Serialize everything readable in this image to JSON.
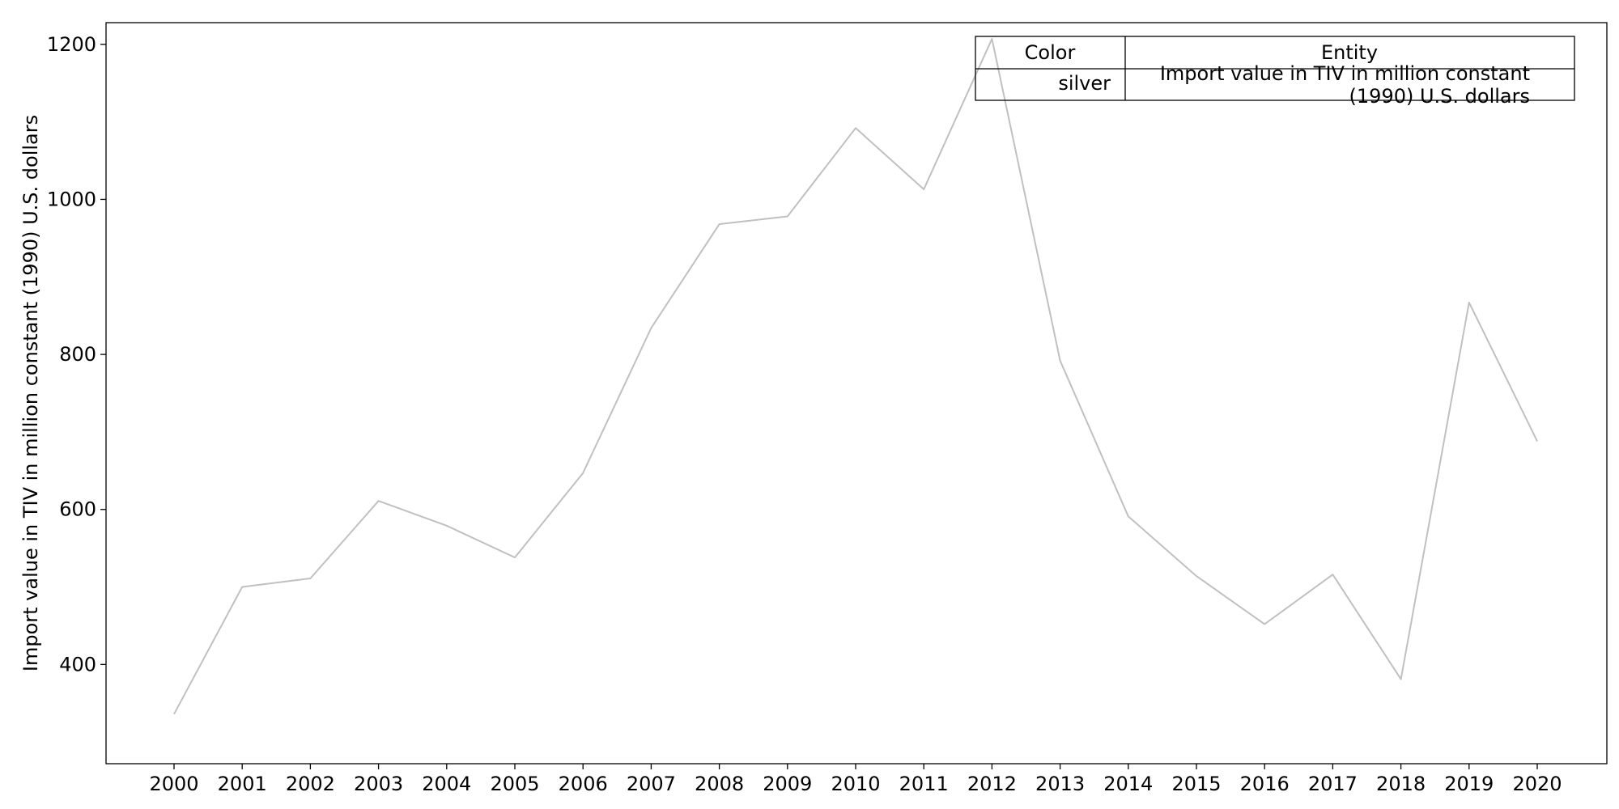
{
  "chart_data": {
    "type": "line",
    "title": "",
    "xlabel": "",
    "ylabel": "Import value in TIV in million constant (1990) U.S. dollars",
    "x": [
      "2000",
      "2001",
      "2002",
      "2003",
      "2004",
      "2005",
      "2006",
      "2007",
      "2008",
      "2009",
      "2010",
      "2011",
      "2012",
      "2013",
      "2014",
      "2015",
      "2016",
      "2017",
      "2018",
      "2019",
      "2020"
    ],
    "series": [
      {
        "name": "Import value in TIV in million constant (1990) U.S. dollars",
        "color": "#c0c0c0",
        "values": [
          336,
          500,
          511,
          611,
          579,
          538,
          647,
          834,
          968,
          978,
          1092,
          1013,
          1207,
          792,
          591,
          514,
          452,
          516,
          381,
          867,
          688
        ]
      }
    ],
    "yticks": [
      400,
      600,
      800,
      1000,
      1200
    ],
    "ylim": [
      272,
      1228
    ],
    "grid": false,
    "legend": {
      "placement": "top-right",
      "headers": [
        "Color",
        "Entity"
      ],
      "rows": [
        {
          "color": "silver",
          "entity_line1": "Import value in TIV in million constant",
          "entity_line2": "(1990) U.S. dollars"
        }
      ]
    }
  }
}
